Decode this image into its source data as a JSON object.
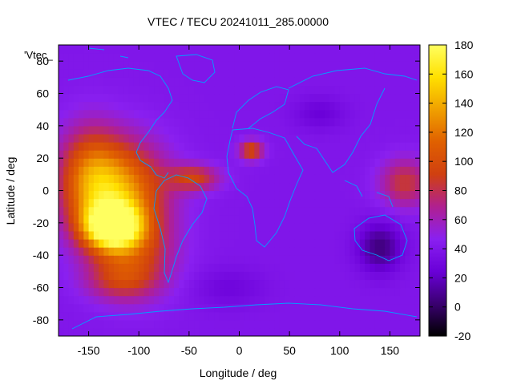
{
  "chart_data": {
    "type": "heatmap",
    "title": "VTEC / TECU 20241011_285.00000",
    "xlabel": "Longitude / deg",
    "ylabel": "Latitude / deg",
    "series_label": "'Vtec_",
    "xlim": [
      -180,
      180
    ],
    "ylim": [
      -90,
      90
    ],
    "x_ticks": [
      -150,
      -100,
      -50,
      0,
      50,
      100,
      150
    ],
    "y_ticks": [
      -80,
      -60,
      -40,
      -20,
      0,
      20,
      40,
      60,
      80
    ],
    "colorbar": {
      "range": [
        -20,
        180
      ],
      "ticks": [
        -20,
        0,
        20,
        40,
        60,
        80,
        100,
        120,
        140,
        160,
        180
      ],
      "palette": [
        "#000000",
        "#3a0070",
        "#6a00d8",
        "#8a20f0",
        "#b02090",
        "#d04010",
        "#e06000",
        "#f0a000",
        "#ffe000",
        "#ffff60"
      ]
    },
    "background_level": 40,
    "features": [
      {
        "lon": -127,
        "lat": -22,
        "value": 170,
        "rx": 28,
        "ry": 14
      },
      {
        "lon": -120,
        "lat": 0,
        "value": 130,
        "rx": 45,
        "ry": 30
      },
      {
        "lon": -150,
        "lat": 10,
        "value": 90,
        "rx": 30,
        "ry": 30
      },
      {
        "lon": -105,
        "lat": -40,
        "value": 85,
        "rx": 40,
        "ry": 25
      },
      {
        "lon": -120,
        "lat": -55,
        "value": 70,
        "rx": 35,
        "ry": 12
      },
      {
        "lon": -45,
        "lat": 8,
        "value": 90,
        "rx": 25,
        "ry": 8
      },
      {
        "lon": 12,
        "lat": 25,
        "value": 100,
        "rx": 12,
        "ry": 6
      },
      {
        "lon": 165,
        "lat": 5,
        "value": 85,
        "rx": 25,
        "ry": 15
      },
      {
        "lon": 140,
        "lat": -35,
        "value": 5,
        "rx": 22,
        "ry": 15
      },
      {
        "lon": 80,
        "lat": 48,
        "value": 25,
        "rx": 25,
        "ry": 10
      },
      {
        "lon": -10,
        "lat": -60,
        "value": 28,
        "rx": 35,
        "ry": 12
      }
    ],
    "grid": false,
    "colorbar_position": "right",
    "overlay": "coastlines",
    "coastline_color": "#00a0ff"
  }
}
